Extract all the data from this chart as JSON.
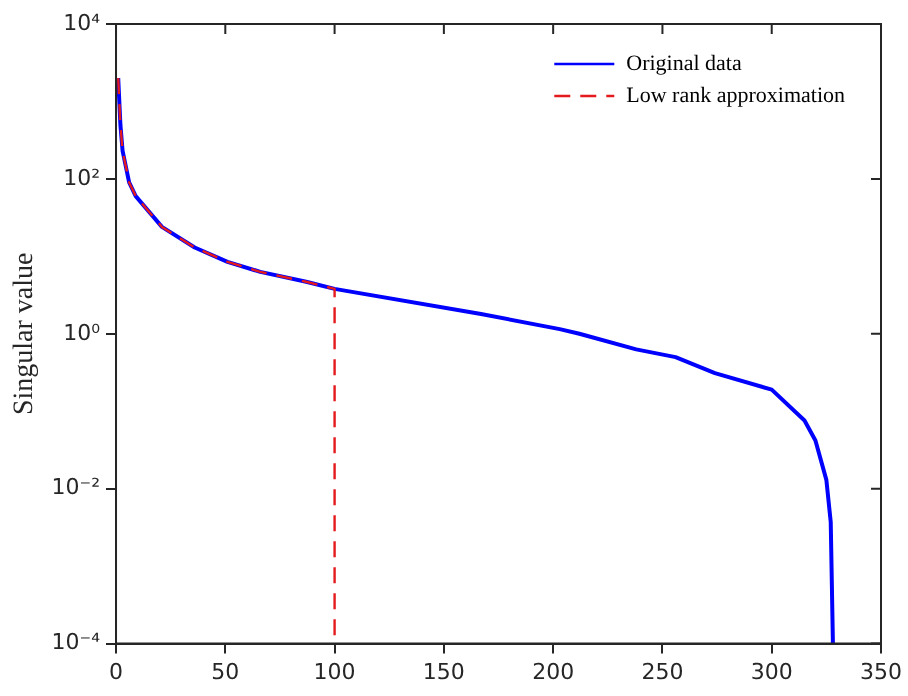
{
  "chart_data": {
    "type": "line",
    "ylabel": "Singular value",
    "log": "y",
    "legend": "top right",
    "marker": "none",
    "grid": false,
    "xlim": [
      0,
      350
    ],
    "xticks": [
      0,
      50,
      100,
      150,
      200,
      250,
      300,
      350
    ],
    "ylim": [
      0.0001,
      10000
    ],
    "yticks": [
      {
        "value": 0.0001,
        "label": "10⁻⁴"
      },
      {
        "value": 0.01,
        "label": "10⁻²"
      },
      {
        "value": 1,
        "label": "10⁰"
      },
      {
        "value": 100,
        "label": "10²"
      },
      {
        "value": 10000,
        "label": "10⁴"
      }
    ],
    "series": [
      {
        "name": "Original data",
        "color": "#0000ff",
        "line_style": "solid",
        "x": [
          1,
          2,
          3,
          6,
          9,
          21,
          36,
          51,
          66,
          87,
          100,
          167,
          203,
          212,
          238,
          256,
          274,
          300,
          315,
          320,
          325,
          327,
          328
        ],
        "values": [
          2000,
          500,
          230,
          90,
          60,
          24,
          13,
          8.5,
          6.3,
          4.7,
          3.8,
          1.8,
          1.15,
          1,
          0.63,
          0.5,
          0.31,
          0.19,
          0.076,
          0.042,
          0.013,
          0.0037,
          0.0001
        ]
      },
      {
        "name": "Low rank approximation",
        "color": "#e41a1c",
        "line_style": "dashed",
        "x": [
          1,
          2,
          3,
          6,
          9,
          21,
          36,
          51,
          66,
          87,
          100,
          100
        ],
        "values": [
          2000,
          500,
          230,
          90,
          60,
          24,
          13,
          8.5,
          6.3,
          4.7,
          3.8,
          0.0001
        ]
      }
    ]
  }
}
